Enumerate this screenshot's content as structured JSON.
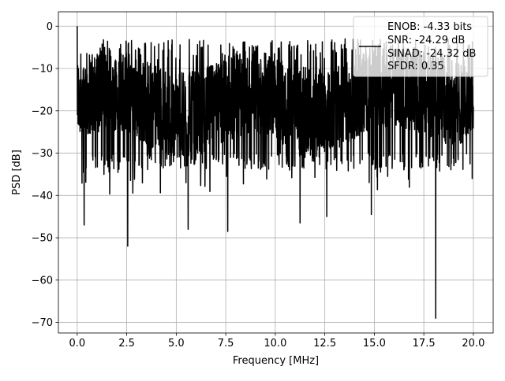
{
  "chart_data": {
    "type": "line",
    "title": "",
    "xlabel": "Frequency [MHz]",
    "ylabel": "PSD [dB]",
    "xlim": [
      -0.95,
      21.0
    ],
    "ylim": [
      -72.5,
      3.4
    ],
    "x_ticks": [
      0.0,
      2.5,
      5.0,
      7.5,
      10.0,
      12.5,
      15.0,
      17.5,
      20.0
    ],
    "x_tick_labels": [
      "0.0",
      "2.5",
      "5.0",
      "7.5",
      "10.0",
      "12.5",
      "15.0",
      "17.5",
      "20.0"
    ],
    "y_ticks": [
      0,
      -10,
      -20,
      -30,
      -40,
      -50,
      -60,
      -70
    ],
    "y_tick_labels": [
      "0",
      "−10",
      "−20",
      "−30",
      "−40",
      "−50",
      "−60",
      "−70"
    ],
    "grid": true,
    "legend_placement": "top-right",
    "legend_entries": [
      "ENOB: -4.33 bits",
      "SNR: -24.29 dB",
      "SINAD: -24.32 dB",
      "SFDR: 0.35"
    ],
    "series": [
      {
        "color": "#000000",
        "description_of_shape": "dense noisy PSD trace fluctuating mostly between about -8 dB and -30 dB across 0-20 MHz",
        "peak": {
          "x": 0.0,
          "y": 0.0
        },
        "notable_dips": [
          {
            "x": 0.35,
            "y": -47
          },
          {
            "x": 2.55,
            "y": -52
          },
          {
            "x": 5.6,
            "y": -48
          },
          {
            "x": 7.6,
            "y": -48.5
          },
          {
            "x": 11.25,
            "y": -46.5
          },
          {
            "x": 12.6,
            "y": -45
          },
          {
            "x": 14.85,
            "y": -44.5
          },
          {
            "x": 18.1,
            "y": -69
          }
        ],
        "band_top_approx": -8,
        "band_bottom_approx": -30
      }
    ]
  }
}
